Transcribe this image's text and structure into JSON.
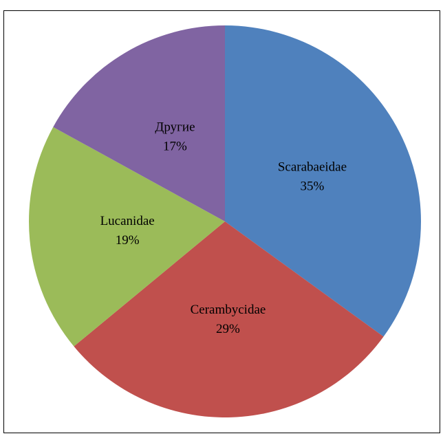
{
  "chart_data": {
    "type": "pie",
    "categories": [
      "Scarabaeidae",
      "Cerambycidae",
      "Lucanidae",
      "Другие"
    ],
    "values": [
      35,
      29,
      19,
      17
    ],
    "value_labels": [
      "35%",
      "29%",
      "19%",
      "17%"
    ],
    "colors": [
      "#4f81bd",
      "#c0504d",
      "#9bbb59",
      "#8064a2"
    ]
  }
}
